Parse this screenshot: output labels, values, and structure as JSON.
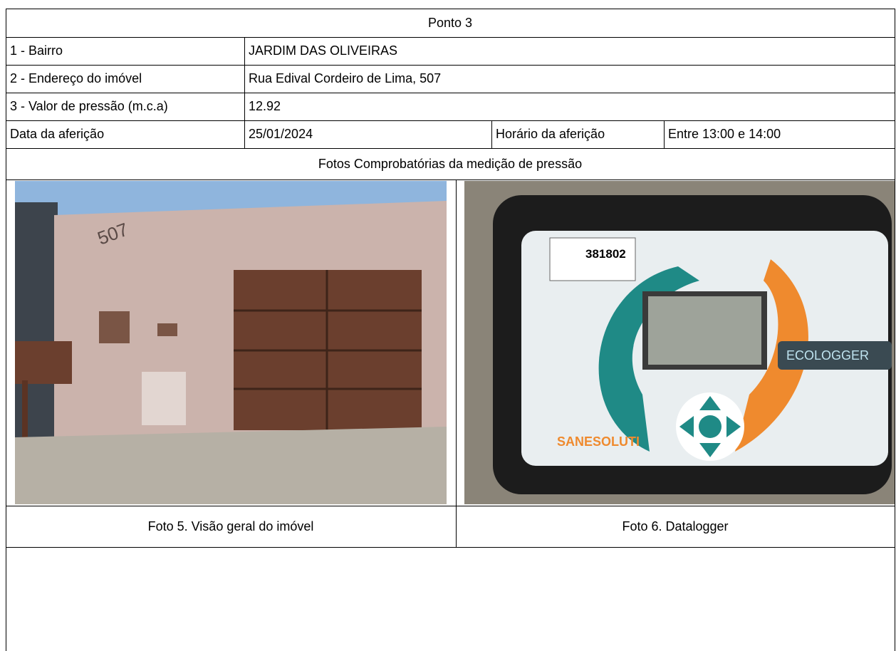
{
  "header": {
    "title": "Ponto 3"
  },
  "table": {
    "rows": [
      [
        "1 - Bairro",
        "JARDIM DAS OLIVEIRAS"
      ],
      [
        "2 - Endereço do imóvel",
        "Rua Edival Cordeiro de Lima, 507"
      ],
      [
        "3 - Valor de pressão (m.c.a)",
        "12.92"
      ],
      [
        "Data da aferição",
        "25/01/2024",
        "Horário da aferição",
        "Entre 13:00 e 14:00"
      ]
    ]
  },
  "photos_heading": "Fotos Comprobatórias da medição de pressão",
  "photos": [
    {
      "caption": "Foto 5. Visão geral do imóvel",
      "texts": [
        "507"
      ]
    },
    {
      "caption": "Foto 6. Datalogger",
      "texts": [
        "381802",
        "ECOLOGGER",
        "SANESOLUTI"
      ]
    }
  ]
}
